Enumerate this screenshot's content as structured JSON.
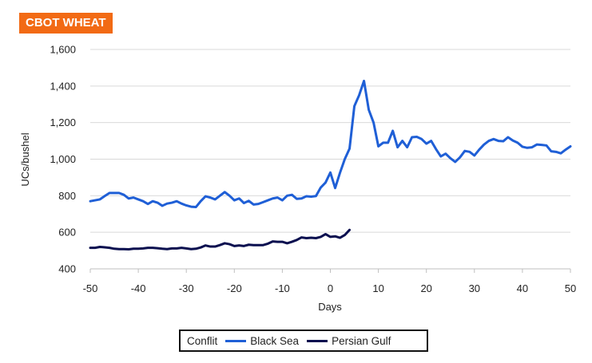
{
  "chart_data": {
    "type": "line",
    "title": "CBOT WHEAT",
    "xlabel": "Days",
    "ylabel": "UCs/bushel",
    "xlim": [
      -50,
      50
    ],
    "ylim": [
      400,
      1600
    ],
    "x_ticks": [
      -50,
      -40,
      -30,
      -20,
      -10,
      0,
      10,
      20,
      30,
      40,
      50
    ],
    "y_ticks": [
      400,
      600,
      800,
      1000,
      1200,
      1400,
      1600
    ],
    "y_tick_labels": [
      "400",
      "600",
      "800",
      "1,000",
      "1,200",
      "1,400",
      "1,600"
    ],
    "grid": "horizontal",
    "legend_title": "Conflit",
    "legend_position": "bottom",
    "series": [
      {
        "name": "Black Sea",
        "color": "#1f5fd6",
        "points": [
          [
            -50,
            770
          ],
          [
            -49,
            775
          ],
          [
            -48,
            780
          ],
          [
            -47,
            798
          ],
          [
            -46,
            815
          ],
          [
            -45,
            815
          ],
          [
            -44,
            815
          ],
          [
            -43,
            805
          ],
          [
            -42,
            785
          ],
          [
            -41,
            790
          ],
          [
            -40,
            780
          ],
          [
            -39,
            770
          ],
          [
            -38,
            755
          ],
          [
            -37,
            770
          ],
          [
            -36,
            762
          ],
          [
            -35,
            745
          ],
          [
            -34,
            757
          ],
          [
            -33,
            762
          ],
          [
            -32,
            770
          ],
          [
            -31,
            757
          ],
          [
            -30,
            747
          ],
          [
            -29,
            740
          ],
          [
            -28,
            738
          ],
          [
            -27,
            770
          ],
          [
            -26,
            797
          ],
          [
            -25,
            790
          ],
          [
            -24,
            780
          ],
          [
            -23,
            800
          ],
          [
            -22,
            820
          ],
          [
            -21,
            800
          ],
          [
            -20,
            775
          ],
          [
            -19,
            785
          ],
          [
            -18,
            760
          ],
          [
            -17,
            772
          ],
          [
            -16,
            752
          ],
          [
            -15,
            755
          ],
          [
            -14,
            765
          ],
          [
            -13,
            775
          ],
          [
            -12,
            785
          ],
          [
            -11,
            790
          ],
          [
            -10,
            775
          ],
          [
            -9,
            800
          ],
          [
            -8,
            805
          ],
          [
            -7,
            783
          ],
          [
            -6,
            785
          ],
          [
            -5,
            797
          ],
          [
            -4,
            795
          ],
          [
            -3,
            798
          ],
          [
            -2,
            845
          ],
          [
            -1,
            872
          ],
          [
            0,
            927
          ],
          [
            1,
            842
          ],
          [
            2,
            925
          ],
          [
            3,
            1000
          ],
          [
            4,
            1058
          ],
          [
            5,
            1290
          ],
          [
            6,
            1350
          ],
          [
            7,
            1428
          ],
          [
            8,
            1270
          ],
          [
            9,
            1200
          ],
          [
            10,
            1070
          ],
          [
            11,
            1090
          ],
          [
            12,
            1090
          ],
          [
            13,
            1155
          ],
          [
            14,
            1065
          ],
          [
            15,
            1100
          ],
          [
            16,
            1065
          ],
          [
            17,
            1120
          ],
          [
            18,
            1122
          ],
          [
            19,
            1110
          ],
          [
            20,
            1085
          ],
          [
            21,
            1100
          ],
          [
            22,
            1055
          ],
          [
            23,
            1015
          ],
          [
            24,
            1030
          ],
          [
            25,
            1005
          ],
          [
            26,
            985
          ],
          [
            27,
            1010
          ],
          [
            28,
            1045
          ],
          [
            29,
            1040
          ],
          [
            30,
            1020
          ],
          [
            31,
            1052
          ],
          [
            32,
            1080
          ],
          [
            33,
            1100
          ],
          [
            34,
            1110
          ],
          [
            35,
            1100
          ],
          [
            36,
            1098
          ],
          [
            37,
            1120
          ],
          [
            38,
            1102
          ],
          [
            39,
            1090
          ],
          [
            40,
            1068
          ],
          [
            41,
            1062
          ],
          [
            42,
            1065
          ],
          [
            43,
            1080
          ],
          [
            44,
            1078
          ],
          [
            45,
            1075
          ],
          [
            46,
            1043
          ],
          [
            47,
            1040
          ],
          [
            48,
            1032
          ],
          [
            49,
            1052
          ],
          [
            50,
            1070
          ]
        ]
      },
      {
        "name": "Persian Gulf",
        "color": "#0a0f4f",
        "points": [
          [
            -50,
            515
          ],
          [
            -49,
            515
          ],
          [
            -48,
            520
          ],
          [
            -47,
            518
          ],
          [
            -46,
            515
          ],
          [
            -45,
            510
          ],
          [
            -44,
            508
          ],
          [
            -43,
            508
          ],
          [
            -42,
            507
          ],
          [
            -41,
            510
          ],
          [
            -40,
            510
          ],
          [
            -39,
            512
          ],
          [
            -38,
            515
          ],
          [
            -37,
            515
          ],
          [
            -36,
            513
          ],
          [
            -35,
            510
          ],
          [
            -34,
            508
          ],
          [
            -33,
            512
          ],
          [
            -32,
            512
          ],
          [
            -31,
            515
          ],
          [
            -30,
            512
          ],
          [
            -29,
            508
          ],
          [
            -28,
            510
          ],
          [
            -27,
            517
          ],
          [
            -26,
            528
          ],
          [
            -25,
            522
          ],
          [
            -24,
            522
          ],
          [
            -23,
            530
          ],
          [
            -22,
            540
          ],
          [
            -21,
            535
          ],
          [
            -20,
            525
          ],
          [
            -19,
            528
          ],
          [
            -18,
            525
          ],
          [
            -17,
            532
          ],
          [
            -16,
            530
          ],
          [
            -15,
            530
          ],
          [
            -14,
            530
          ],
          [
            -13,
            538
          ],
          [
            -12,
            550
          ],
          [
            -11,
            548
          ],
          [
            -10,
            548
          ],
          [
            -9,
            540
          ],
          [
            -8,
            548
          ],
          [
            -7,
            558
          ],
          [
            -6,
            572
          ],
          [
            -5,
            568
          ],
          [
            -4,
            570
          ],
          [
            -3,
            568
          ],
          [
            -2,
            575
          ],
          [
            -1,
            590
          ],
          [
            0,
            575
          ],
          [
            1,
            578
          ],
          [
            2,
            570
          ],
          [
            3,
            585
          ],
          [
            4,
            613
          ]
        ]
      }
    ]
  }
}
